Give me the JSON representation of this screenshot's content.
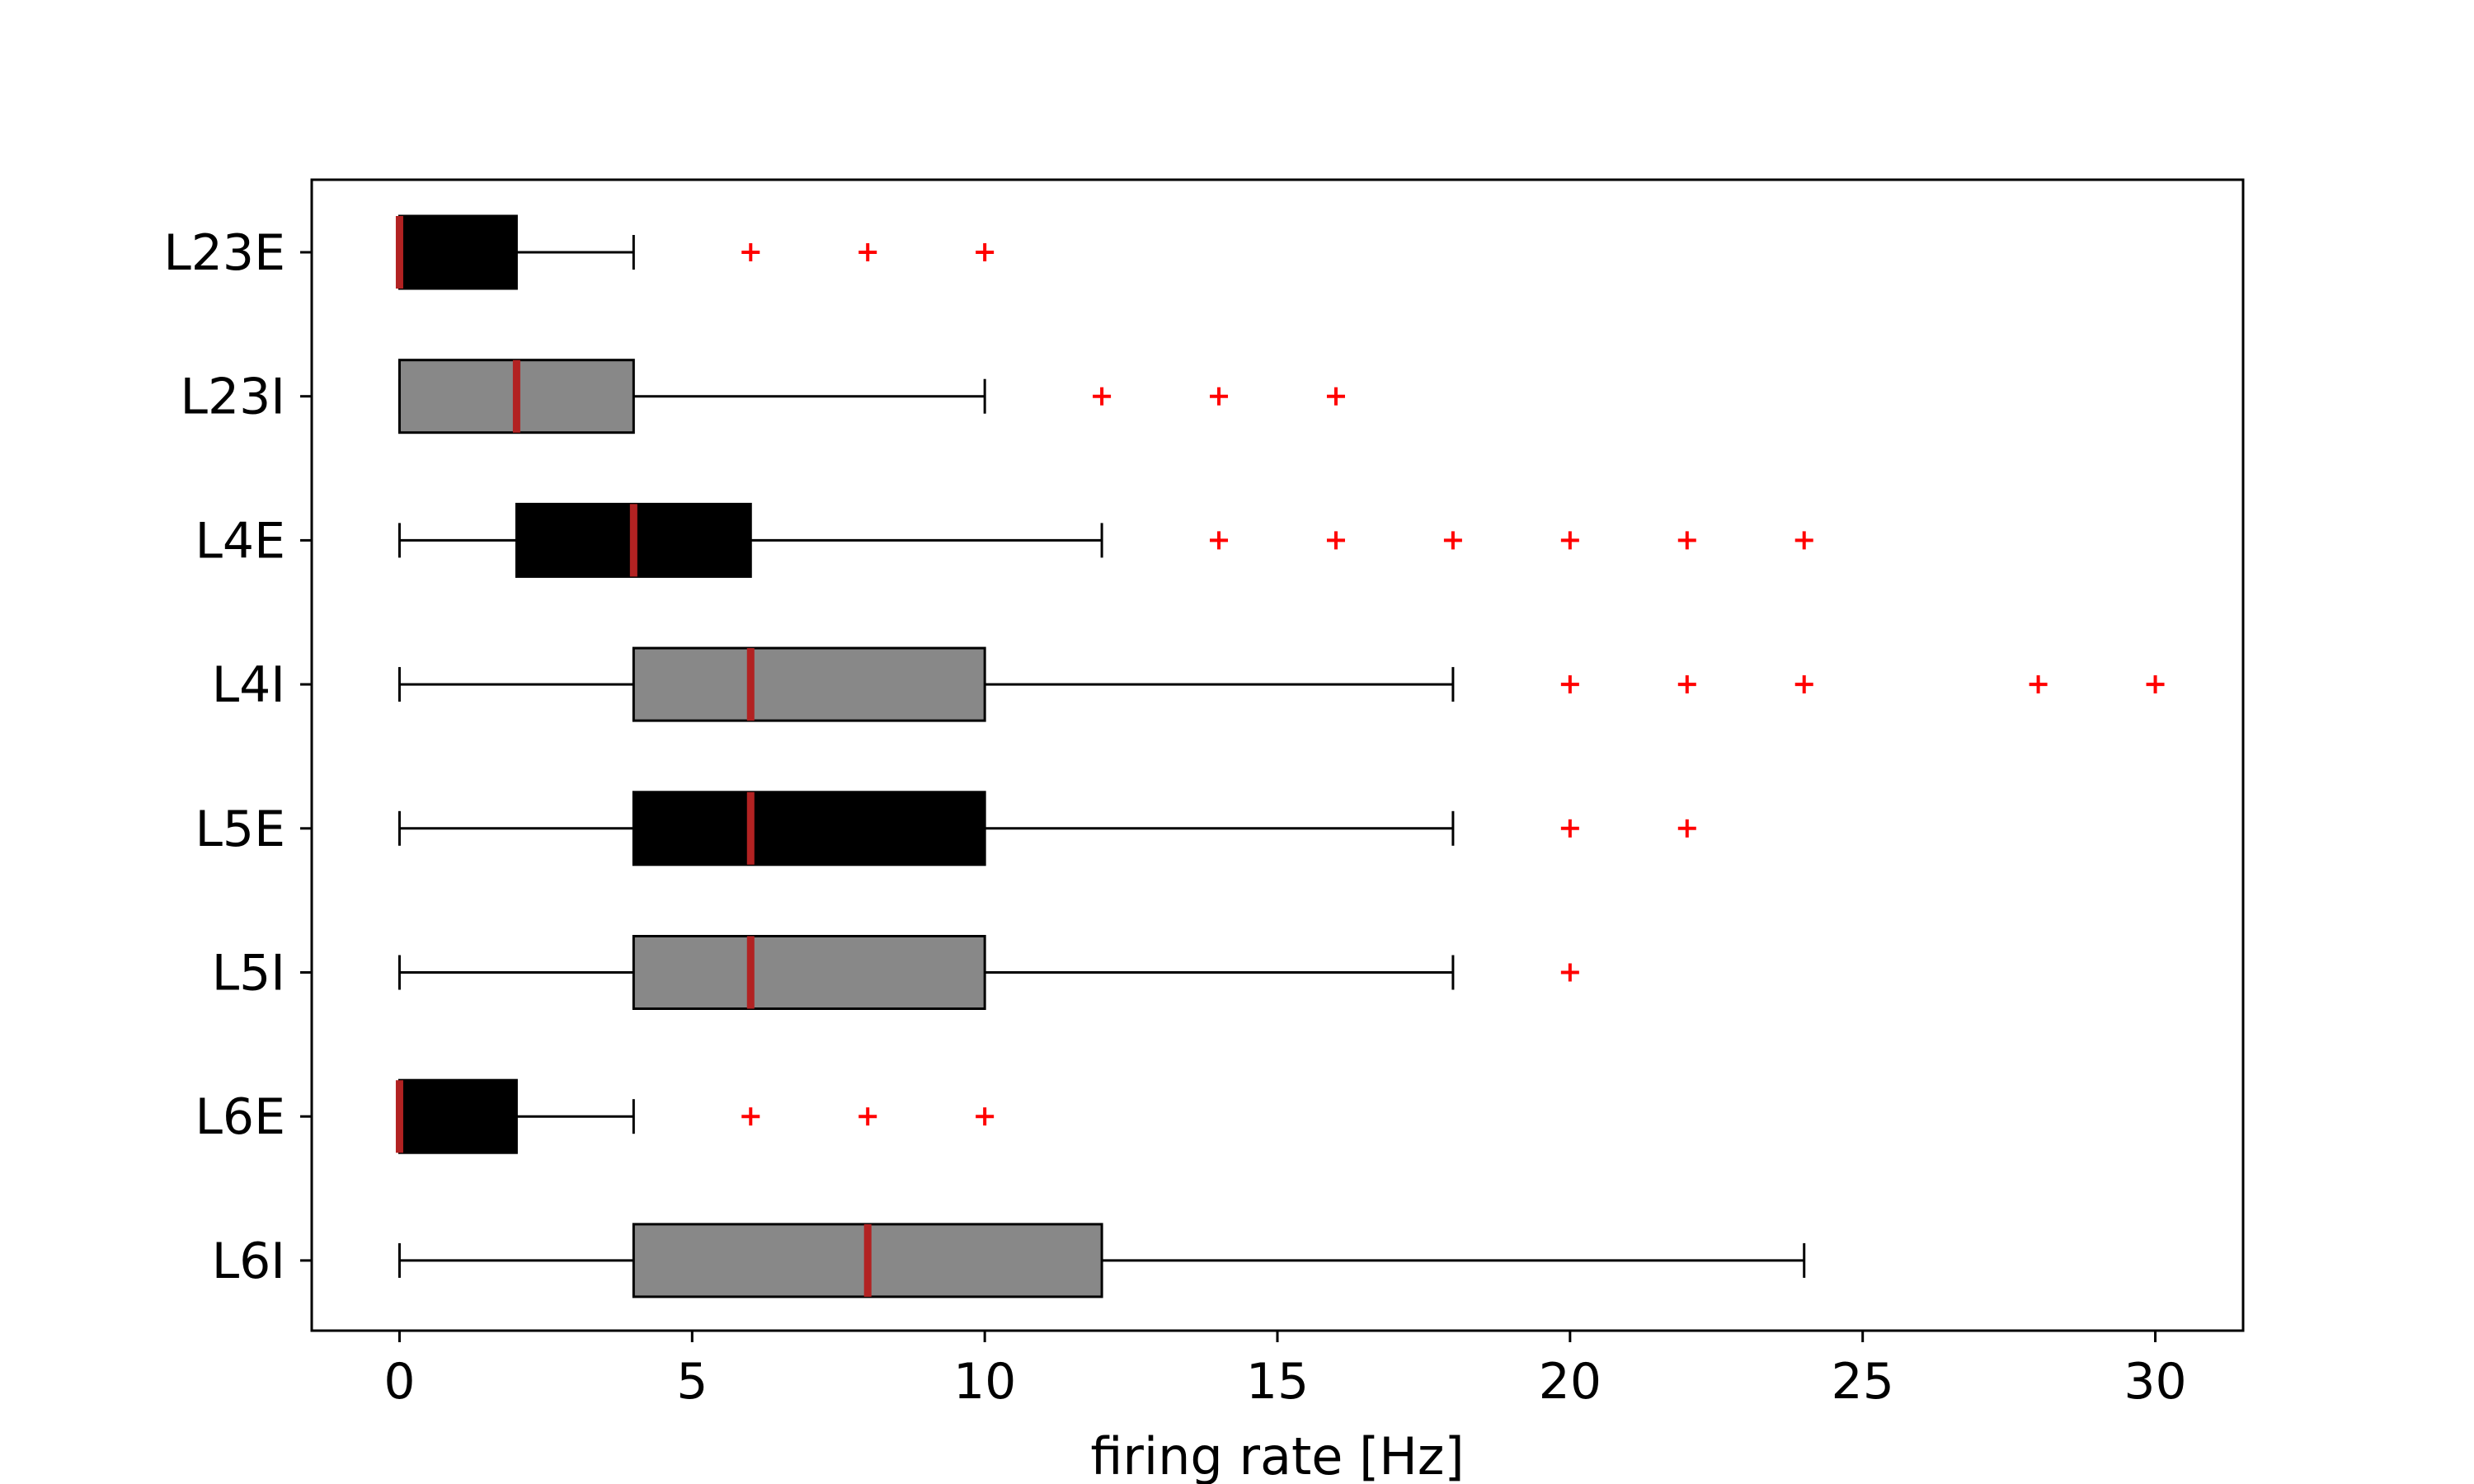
{
  "chart_data": {
    "type": "boxplot",
    "orientation": "horizontal",
    "title": "",
    "xlabel": "firing rate [Hz]",
    "ylabel": "",
    "xlim": [
      -1.5,
      31.5
    ],
    "xticks": [
      0,
      5,
      10,
      15,
      20,
      25,
      30
    ],
    "xtick_labels": [
      "0",
      "5",
      "10",
      "15",
      "20",
      "25",
      "30"
    ],
    "grid": false,
    "legend": "none",
    "colors": {
      "excitatory_box": "#000000",
      "inhibitory_box": "#888888",
      "median": "#b22222",
      "outlier": "#ff0000",
      "whisker": "#000000"
    },
    "categories": [
      "L23E",
      "L23I",
      "L4E",
      "L4I",
      "L5E",
      "L5I",
      "L6E",
      "L6I"
    ],
    "boxes": [
      {
        "label": "L23E",
        "kind": "excitatory",
        "whislo": 0,
        "q1": 0,
        "median": 0,
        "q3": 2,
        "whishi": 4,
        "outliers": [
          6,
          8,
          10
        ]
      },
      {
        "label": "L23I",
        "kind": "inhibitory",
        "whislo": 0,
        "q1": 0,
        "median": 2,
        "q3": 4,
        "whishi": 10,
        "outliers": [
          12,
          14,
          16
        ]
      },
      {
        "label": "L4E",
        "kind": "excitatory",
        "whislo": 0,
        "q1": 2,
        "median": 4,
        "q3": 6,
        "whishi": 12,
        "outliers": [
          14,
          16,
          18,
          20,
          22,
          24
        ]
      },
      {
        "label": "L4I",
        "kind": "inhibitory",
        "whislo": 0,
        "q1": 4,
        "median": 6,
        "q3": 10,
        "whishi": 18,
        "outliers": [
          20,
          22,
          24,
          28,
          30
        ]
      },
      {
        "label": "L5E",
        "kind": "excitatory",
        "whislo": 0,
        "q1": 4,
        "median": 6,
        "q3": 10,
        "whishi": 18,
        "outliers": [
          20,
          22
        ]
      },
      {
        "label": "L5I",
        "kind": "inhibitory",
        "whislo": 0,
        "q1": 4,
        "median": 6,
        "q3": 10,
        "whishi": 18,
        "outliers": [
          20
        ]
      },
      {
        "label": "L6E",
        "kind": "excitatory",
        "whislo": 0,
        "q1": 0,
        "median": 0,
        "q3": 2,
        "whishi": 4,
        "outliers": [
          6,
          8,
          10
        ]
      },
      {
        "label": "L6I",
        "kind": "inhibitory",
        "whislo": 0,
        "q1": 4,
        "median": 8,
        "q3": 12,
        "whishi": 24,
        "outliers": []
      }
    ]
  }
}
